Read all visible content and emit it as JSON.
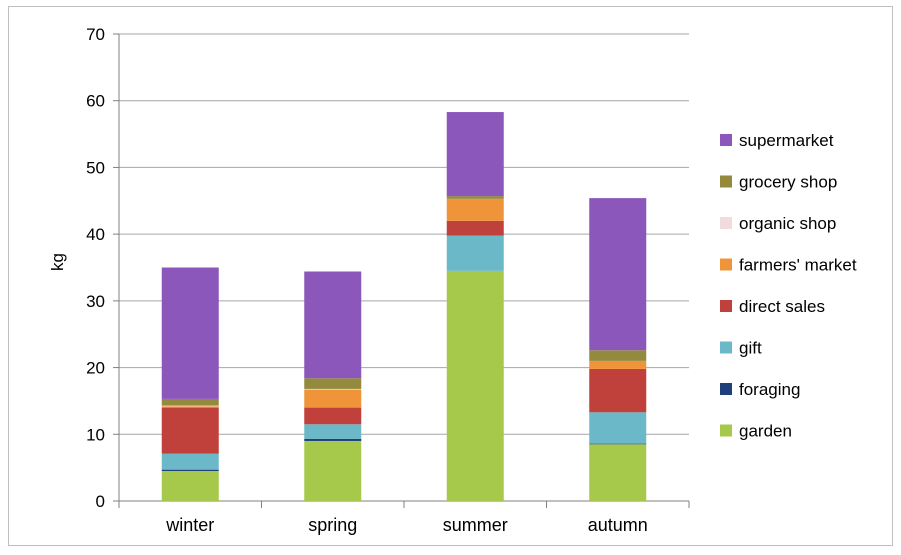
{
  "chart_data": {
    "type": "bar",
    "stacked": true,
    "categories": [
      "winter",
      "spring",
      "summer",
      "autumn"
    ],
    "ylabel": "kg",
    "xlabel": "",
    "title": "",
    "ylim": [
      0,
      70
    ],
    "yticks": [
      0,
      10,
      20,
      30,
      40,
      50,
      60,
      70
    ],
    "grid": "horizontal",
    "legend_position": "right",
    "series": [
      {
        "name": "garden",
        "color": "#a6c84b",
        "values": [
          4.5,
          9.0,
          34.5,
          8.5
        ]
      },
      {
        "name": "foraging",
        "color": "#1f3f7a",
        "values": [
          0.2,
          0.3,
          0.0,
          0.1
        ]
      },
      {
        "name": "gift",
        "color": "#6ab8c8",
        "values": [
          2.4,
          2.2,
          5.3,
          4.7
        ]
      },
      {
        "name": "direct sales",
        "color": "#c0403c",
        "values": [
          6.9,
          2.5,
          2.2,
          6.5
        ]
      },
      {
        "name": "farmers' market",
        "color": "#f0943a",
        "values": [
          0.2,
          2.7,
          3.3,
          1.2
        ]
      },
      {
        "name": "organic shop",
        "color": "#f2dcdb",
        "values": [
          0.1,
          0.1,
          0.0,
          0.0
        ]
      },
      {
        "name": "grocery shop",
        "color": "#948a3e",
        "values": [
          1.0,
          1.6,
          0.4,
          1.6
        ]
      },
      {
        "name": "supermarket",
        "color": "#8b57bb",
        "values": [
          19.7,
          16.0,
          12.6,
          22.8
        ]
      }
    ]
  }
}
